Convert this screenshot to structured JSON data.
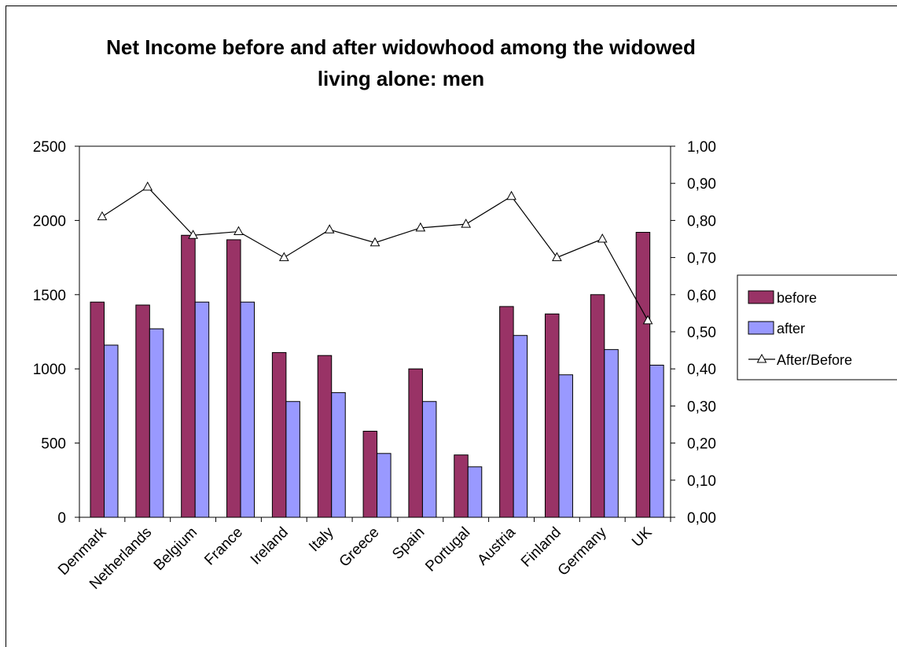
{
  "chart_data": {
    "type": "bar",
    "title_lines": [
      "Net Income before and after widowhood among the widowed",
      "living alone: men"
    ],
    "categories": [
      "Denmark",
      "Netherlands",
      "Belgium",
      "France",
      "Ireland",
      "Italy",
      "Greece",
      "Spain",
      "Portugal",
      "Austria",
      "Finland",
      "Germany",
      "UK"
    ],
    "series": [
      {
        "name": "before",
        "axis": "left",
        "kind": "bar",
        "color": "#993366",
        "values": [
          1450,
          1430,
          1900,
          1870,
          1110,
          1090,
          580,
          1000,
          420,
          1420,
          1370,
          1500,
          1920
        ]
      },
      {
        "name": "after",
        "axis": "left",
        "kind": "bar",
        "color": "#9999FF",
        "values": [
          1160,
          1270,
          1450,
          1450,
          780,
          840,
          430,
          780,
          340,
          1225,
          960,
          1130,
          1025
        ]
      },
      {
        "name": "After/Before",
        "axis": "right",
        "kind": "line",
        "color": "#000000",
        "marker": "triangle",
        "values": [
          0.81,
          0.89,
          0.76,
          0.77,
          0.7,
          0.775,
          0.74,
          0.78,
          0.79,
          0.865,
          0.7,
          0.75,
          0.53
        ]
      }
    ],
    "left_axis": {
      "min": 0,
      "max": 2500,
      "ticks": [
        "0",
        "500",
        "1000",
        "1500",
        "2000",
        "2500"
      ]
    },
    "right_axis": {
      "min": 0,
      "max": 1,
      "ticks": [
        "0,00",
        "0,10",
        "0,20",
        "0,30",
        "0,40",
        "0,50",
        "0,60",
        "0,70",
        "0,80",
        "0,90",
        "1,00"
      ]
    },
    "grid": false,
    "legend_position": "right"
  }
}
